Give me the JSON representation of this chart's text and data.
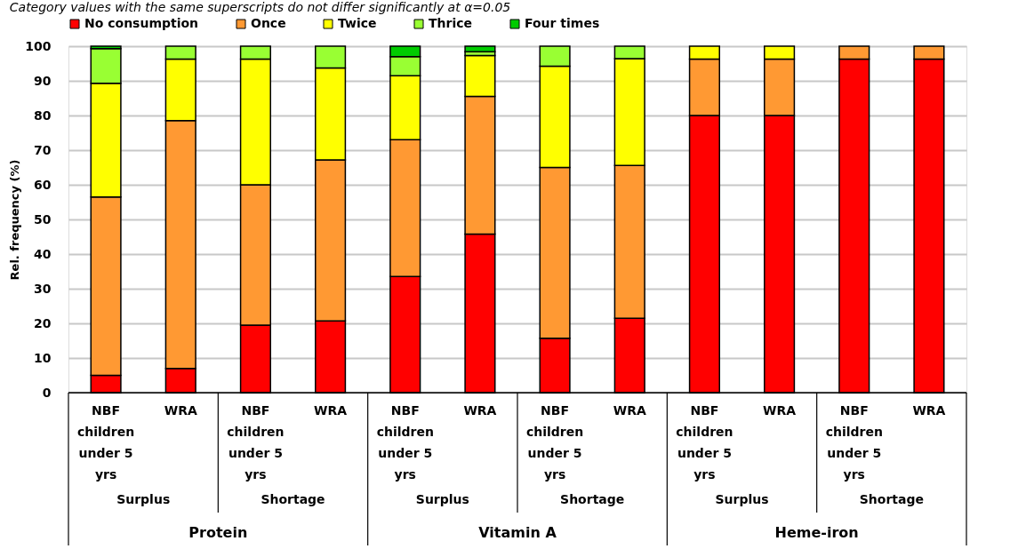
{
  "chart_data": {
    "type": "bar",
    "stacked": true,
    "ylabel": "Rel. frequency (%)",
    "categories": [
      "NBF children under 5 yrs",
      "WRA",
      "NBF children under 5 yrs",
      "WRA",
      "NBF children under 5 yrs",
      "WRA",
      "NBF children under 5 yrs",
      "WRA",
      "NBF children under 5 yrs",
      "WRA",
      "NBF children under 5 yrs",
      "WRA"
    ],
    "series": [
      {
        "name": "No consumption",
        "color": "#ff0000",
        "values": [
          5,
          7,
          19.5,
          20.7,
          33.5,
          45.8,
          15.7,
          21.5,
          80,
          80,
          96.3,
          96.3
        ]
      },
      {
        "name": "Once",
        "color": "#ff9933",
        "values": [
          51.5,
          71.5,
          40.5,
          46.5,
          39.5,
          39.7,
          49.3,
          44.1,
          16.3,
          16.3,
          3.7,
          3.7
        ]
      },
      {
        "name": "Twice",
        "color": "#ffff00",
        "values": [
          32.8,
          17.8,
          36.3,
          26.5,
          18.5,
          11.8,
          29.2,
          30.8,
          3.7,
          3.7,
          0,
          0
        ]
      },
      {
        "name": "Thrice",
        "color": "#99ff33",
        "values": [
          10,
          3.7,
          3.7,
          6.3,
          5.5,
          1.1,
          5.8,
          3.6,
          0,
          0,
          0,
          0
        ]
      },
      {
        "name": "Four times",
        "color": "#00cc00",
        "values": [
          0.7,
          0,
          0,
          0,
          3,
          1.6,
          0,
          0,
          0,
          0,
          0,
          0
        ]
      }
    ],
    "ylim": [
      0,
      100
    ],
    "yticks": [
      0,
      10,
      20,
      30,
      40,
      50,
      60,
      70,
      80,
      90,
      100
    ],
    "grid": "y",
    "legend": "top",
    "annotations": [
      "Category values with the same superscripts do not differ significantly at α=0.05",
      "Surplus",
      "Shortage",
      "Surplus",
      "Shortage",
      "Surplus",
      "Shortage",
      "Protein",
      "Vitamin A",
      "Heme-iron"
    ]
  }
}
